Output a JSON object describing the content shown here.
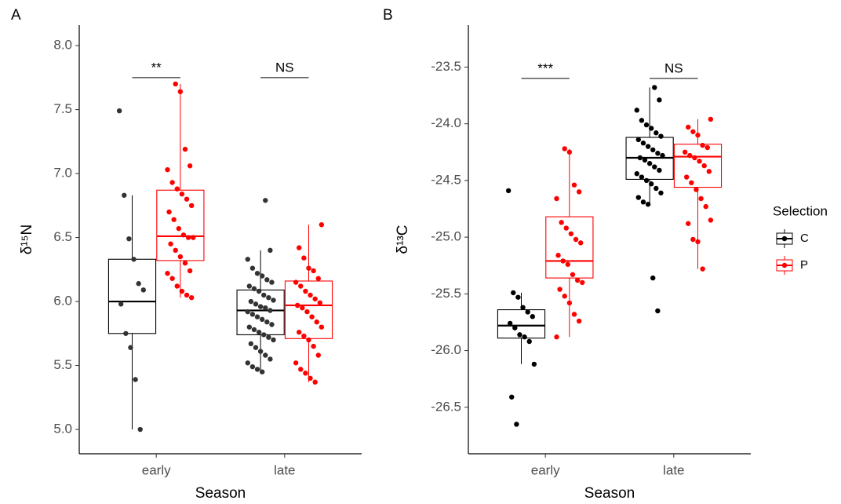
{
  "chart_data": [
    {
      "type": "box",
      "title": "A",
      "ylabel": "δ¹⁵N",
      "xlabel": "Season",
      "categories": [
        "early",
        "late"
      ],
      "ylim": [
        4.81,
        8.16
      ],
      "yticks": [
        {
          "value": 5,
          "label": "5.0"
        },
        5.5,
        {
          "value": 6,
          "label": "6.0"
        },
        6.5,
        {
          "value": 7,
          "label": "7.0"
        },
        7.5,
        {
          "value": 8,
          "label": "8.0"
        }
      ],
      "series": [
        {
          "name": "C",
          "color": "#000000",
          "point_color": "#333333",
          "boxes": [
            {
              "whislo": 5.0,
              "q1": 5.75,
              "med": 6.0,
              "q3": 6.33,
              "whishi": 6.83,
              "points": [
                7.49,
                6.83,
                6.49,
                6.33,
                6.14,
                6.09,
                5.98,
                5.75,
                5.64,
                5.39,
                5.0
              ]
            },
            {
              "whislo": 5.45,
              "q1": 5.74,
              "med": 5.93,
              "q3": 6.09,
              "whishi": 6.4,
              "points": [
                6.79,
                6.4,
                6.33,
                6.26,
                6.22,
                6.2,
                6.17,
                6.15,
                6.12,
                6.1,
                6.08,
                6.05,
                6.03,
                6.01,
                6.0,
                5.98,
                5.96,
                5.95,
                5.93,
                5.92,
                5.9,
                5.88,
                5.86,
                5.84,
                5.82,
                5.8,
                5.78,
                5.76,
                5.74,
                5.72,
                5.7,
                5.67,
                5.64,
                5.61,
                5.58,
                5.55,
                5.52,
                5.49,
                5.47,
                5.45
              ]
            }
          ]
        },
        {
          "name": "P",
          "color": "#ff0000",
          "point_color": "#ff0000",
          "boxes": [
            {
              "whislo": 6.03,
              "q1": 6.32,
              "med": 6.51,
              "q3": 6.87,
              "whishi": 7.7,
              "points": [
                7.7,
                7.64,
                7.19,
                7.06,
                7.03,
                6.93,
                6.88,
                6.84,
                6.8,
                6.75,
                6.7,
                6.64,
                6.57,
                6.52,
                6.5,
                6.5,
                6.45,
                6.4,
                6.35,
                6.3,
                6.24,
                6.22,
                6.18,
                6.12,
                6.08,
                6.05,
                6.03
              ]
            },
            {
              "whislo": 5.37,
              "q1": 5.71,
              "med": 5.97,
              "q3": 6.16,
              "whishi": 6.6,
              "points": [
                6.6,
                6.42,
                6.34,
                6.26,
                6.24,
                6.18,
                6.15,
                6.12,
                6.08,
                6.05,
                6.02,
                5.99,
                5.97,
                5.95,
                5.92,
                5.88,
                5.84,
                5.8,
                5.76,
                5.73,
                5.7,
                5.65,
                5.58,
                5.52,
                5.47,
                5.44,
                5.4,
                5.37
              ]
            }
          ]
        }
      ],
      "annotations": [
        {
          "text": "**",
          "y": 7.75
        },
        {
          "text": "NS",
          "y": 7.75
        }
      ]
    },
    {
      "type": "box",
      "title": "B",
      "ylabel": "δ¹³C",
      "xlabel": "Season",
      "categories": [
        "early",
        "late"
      ],
      "ylim": [
        -26.91,
        -23.13
      ],
      "yticks": [
        -26.5,
        {
          "value": -26,
          "label": "-26.0"
        },
        -25.5,
        {
          "value": -25,
          "label": "-25.0"
        },
        -24.5,
        {
          "value": -24,
          "label": "-24.0"
        },
        -23.5
      ],
      "legend_title": "Selection",
      "legend": "right",
      "series": [
        {
          "name": "C",
          "color": "#000000",
          "point_color": "#000000",
          "boxes": [
            {
              "whislo": -26.12,
              "q1": -25.89,
              "med": -25.78,
              "q3": -25.64,
              "whishi": -25.49,
              "points": [
                -24.59,
                -25.49,
                -25.53,
                -25.62,
                -25.66,
                -25.7,
                -25.76,
                -25.8,
                -25.86,
                -25.88,
                -25.92,
                -26.12,
                -26.41,
                -26.65
              ]
            },
            {
              "whislo": -24.71,
              "q1": -24.49,
              "med": -24.3,
              "q3": -24.12,
              "whishi": -23.68,
              "points": [
                -23.68,
                -23.79,
                -23.88,
                -23.97,
                -24.01,
                -24.04,
                -24.08,
                -24.11,
                -24.14,
                -24.17,
                -24.2,
                -24.23,
                -24.26,
                -24.28,
                -24.3,
                -24.32,
                -24.35,
                -24.38,
                -24.41,
                -24.44,
                -24.47,
                -24.5,
                -24.53,
                -24.57,
                -24.61,
                -24.65,
                -24.69,
                -24.71,
                -25.36,
                -25.65
              ]
            }
          ]
        },
        {
          "name": "P",
          "color": "#ff0000",
          "point_color": "#ff0000",
          "boxes": [
            {
              "whislo": -25.88,
              "q1": -25.36,
              "med": -25.21,
              "q3": -24.82,
              "whishi": -24.22,
              "points": [
                -24.22,
                -24.25,
                -24.54,
                -24.6,
                -24.66,
                -24.87,
                -24.92,
                -24.97,
                -25.02,
                -25.05,
                -25.16,
                -25.21,
                -25.24,
                -25.33,
                -25.38,
                -25.4,
                -25.46,
                -25.52,
                -25.58,
                -25.68,
                -25.74,
                -25.88
              ]
            },
            {
              "whislo": -25.28,
              "q1": -24.56,
              "med": -24.29,
              "q3": -24.18,
              "whishi": -23.96,
              "points": [
                -23.96,
                -24.03,
                -24.07,
                -24.1,
                -24.19,
                -24.21,
                -24.25,
                -24.28,
                -24.3,
                -24.33,
                -24.37,
                -24.42,
                -24.47,
                -24.52,
                -24.58,
                -24.66,
                -24.73,
                -24.85,
                -24.88,
                -25.02,
                -25.04,
                -25.28
              ]
            }
          ]
        }
      ],
      "annotations": [
        {
          "text": "***",
          "y": -23.6
        },
        {
          "text": "NS",
          "y": -23.6
        }
      ]
    }
  ]
}
